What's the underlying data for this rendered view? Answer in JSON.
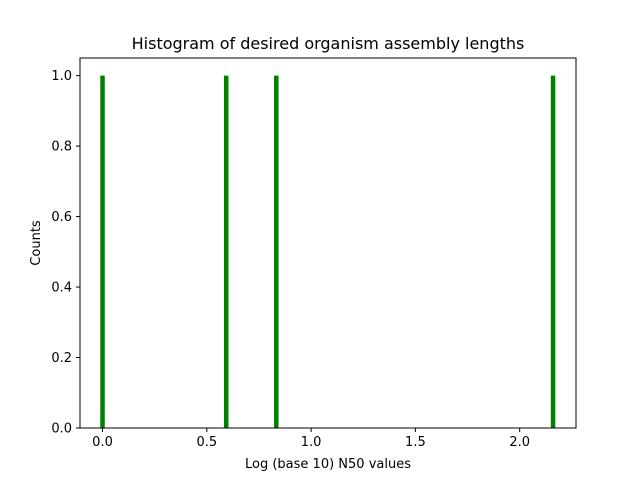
{
  "chart_data": {
    "type": "bar",
    "title": "Histogram of desired organism assembly lengths",
    "xlabel": "Log (base 10) N50 values",
    "ylabel": "Counts",
    "xlim": [
      -0.108,
      2.27
    ],
    "ylim": [
      0,
      1.05
    ],
    "xticks": [
      0.0,
      0.5,
      1.0,
      1.5,
      2.0
    ],
    "xtick_labels": [
      "0.0",
      "0.5",
      "1.0",
      "1.5",
      "2.0"
    ],
    "yticks": [
      0.0,
      0.2,
      0.4,
      0.6,
      0.8,
      1.0
    ],
    "ytick_labels": [
      "0.0",
      "0.2",
      "0.4",
      "0.6",
      "0.8",
      "1.0"
    ],
    "bar_color": "#008000",
    "bin_width": 0.0216,
    "bars": [
      {
        "x": 0.0,
        "count": 1
      },
      {
        "x": 0.593,
        "count": 1
      },
      {
        "x": 0.833,
        "count": 1
      },
      {
        "x": 2.16,
        "count": 1
      }
    ],
    "grid": false,
    "legend": "none"
  }
}
